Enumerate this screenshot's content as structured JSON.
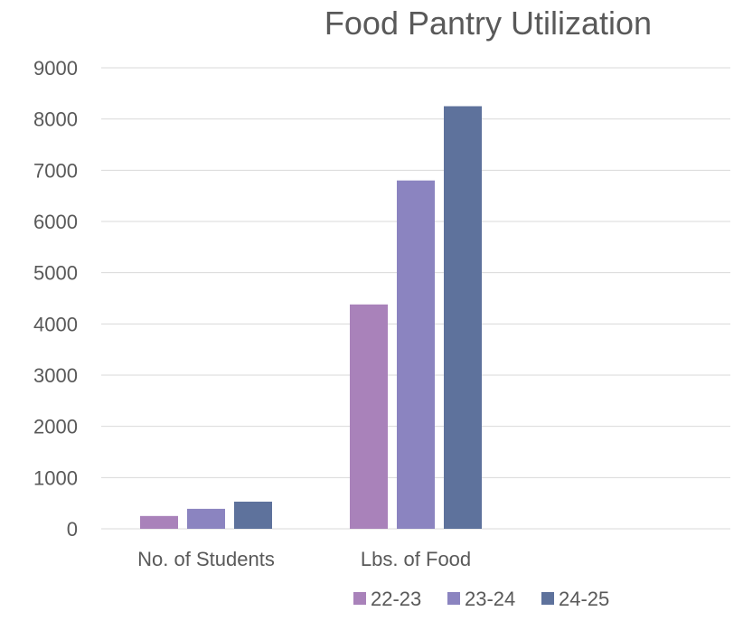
{
  "chart_data": {
    "type": "bar",
    "title": "Food Pantry Utilization",
    "categories": [
      "No. of Students",
      "Lbs. of Food",
      ""
    ],
    "series": [
      {
        "name": "22-23",
        "color": "#A982BA",
        "values": [
          250,
          4380,
          null
        ]
      },
      {
        "name": "23-24",
        "color": "#8B84C0",
        "values": [
          390,
          6800,
          null
        ]
      },
      {
        "name": "24-25",
        "color": "#5E729C",
        "values": [
          530,
          8250,
          null
        ]
      }
    ],
    "ylim": [
      0,
      9000
    ],
    "yticks": [
      0,
      1000,
      2000,
      3000,
      4000,
      5000,
      6000,
      7000,
      8000,
      9000
    ],
    "xlabel": "",
    "ylabel": "",
    "grid": true,
    "legend_position": "bottom"
  }
}
